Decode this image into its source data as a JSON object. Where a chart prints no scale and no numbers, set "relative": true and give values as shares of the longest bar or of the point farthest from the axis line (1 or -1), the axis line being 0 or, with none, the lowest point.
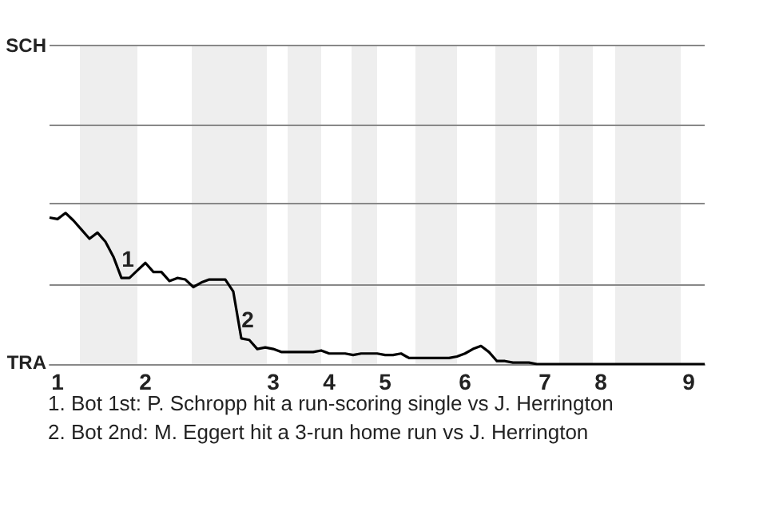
{
  "chart_data": {
    "type": "line",
    "marker": "none",
    "relative": true,
    "categories": [
      null,
      "1",
      null,
      null,
      null,
      null,
      null,
      null,
      null,
      null,
      null,
      null,
      "2",
      null,
      null,
      null,
      null,
      null,
      null,
      null,
      null,
      null,
      null,
      null,
      null,
      null,
      null,
      null,
      "3",
      null,
      null,
      null,
      null,
      null,
      null,
      "4",
      null,
      null,
      null,
      null,
      null,
      null,
      "5",
      null,
      null,
      null,
      null,
      null,
      null,
      null,
      null,
      null,
      "6",
      null,
      null,
      null,
      null,
      null,
      null,
      null,
      null,
      null,
      "7",
      null,
      null,
      null,
      null,
      null,
      null,
      "8",
      null,
      null,
      null,
      null,
      null,
      null,
      null,
      null,
      null,
      null,
      "9",
      null,
      null
    ],
    "series": [
      {
        "color": "#000000",
        "values": [
          0.97,
          0.96,
          1,
          0.95,
          0.89,
          0.83,
          0.87,
          0.81,
          0.71,
          0.57,
          0.57,
          0.62,
          0.67,
          0.61,
          0.61,
          0.55,
          0.57,
          0.56,
          0.51,
          0.54,
          0.56,
          0.56,
          0.56,
          0.48,
          0.17,
          0.16,
          0.1,
          0.11,
          0.1,
          0.08,
          0.08,
          0.08,
          0.08,
          0.08,
          0.09,
          0.07,
          0.07,
          0.07,
          0.06,
          0.07,
          0.07,
          0.07,
          0.06,
          0.06,
          0.07,
          0.04,
          0.04,
          0.04,
          0.04,
          0.04,
          0.04,
          0.05,
          0.07,
          0.1,
          0.12,
          0.08,
          0.02,
          0.02,
          0.01,
          0.01,
          0.01,
          0,
          0,
          0,
          0,
          0,
          0,
          0,
          0,
          0,
          0,
          0,
          0,
          0,
          0,
          0,
          0,
          0,
          0,
          0,
          0,
          0,
          0
        ]
      }
    ],
    "ref_lines": [
      {
        "axis": "y",
        "value": 0.528,
        "label": null,
        "color": "#888888"
      },
      {
        "axis": "y",
        "value": 1.057,
        "label": null,
        "color": "#888888"
      },
      {
        "axis": "y",
        "value": 1.585,
        "label": null,
        "color": "#888888"
      },
      {
        "axis": "y",
        "value": 2.114,
        "label": "SCH",
        "color": "#888888"
      }
    ],
    "annotations": [
      "TRA",
      {
        "text": "1",
        "y": 0.57
      },
      {
        "text": "2",
        "y": 0.17
      },
      "1. Bot 1st: P. Schropp hit a run-scoring single vs J. Herrington",
      "2. Bot 2nd: M. Eggert hit a 3-run home run vs J. Herrington"
    ]
  }
}
